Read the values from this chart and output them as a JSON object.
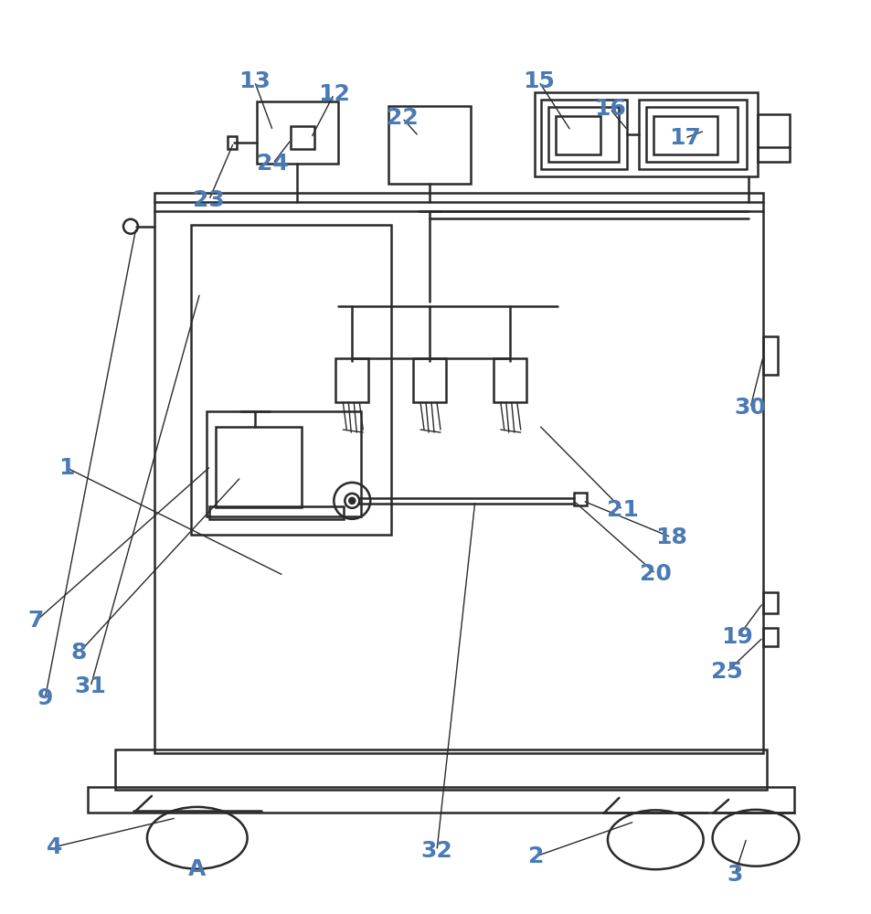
{
  "bg_color": "#ffffff",
  "line_color": "#2a2a2a",
  "label_color": "#4a7ab5",
  "fig_width": 9.54,
  "fig_height": 10.0
}
